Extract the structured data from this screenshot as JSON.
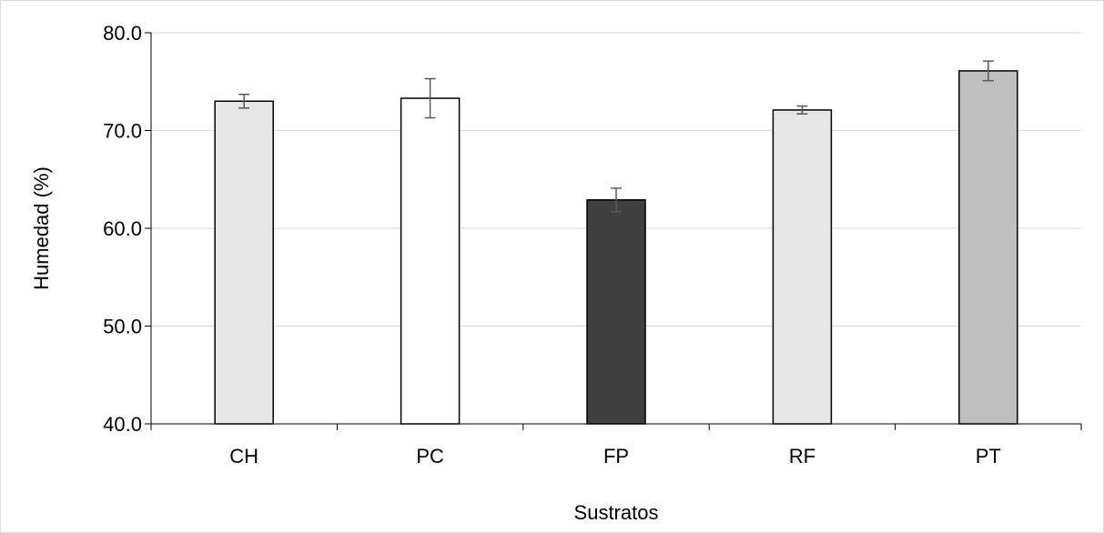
{
  "chart_data": {
    "type": "bar",
    "title": "",
    "xlabel": "Sustratos",
    "ylabel": "Humedad (%)",
    "ylim": [
      40,
      80
    ],
    "yticks": [
      "40.0",
      "50.0",
      "60.0",
      "70.0",
      "80.0"
    ],
    "categories": [
      "CH",
      "PC",
      "FP",
      "RF",
      "PT"
    ],
    "values": [
      73.0,
      73.3,
      62.9,
      72.1,
      76.1
    ],
    "errors": [
      0.7,
      2.0,
      1.2,
      0.4,
      1.0
    ],
    "bar_colors": [
      "#e6e6e6",
      "#ffffff",
      "#404040",
      "#e6e6e6",
      "#bfbfbf"
    ],
    "grid": true,
    "legend": "none"
  },
  "colors": {
    "gridline": "#d9d9d9",
    "axis": "#000000",
    "bar_outline": "#000000",
    "error_bar": "#595959"
  }
}
